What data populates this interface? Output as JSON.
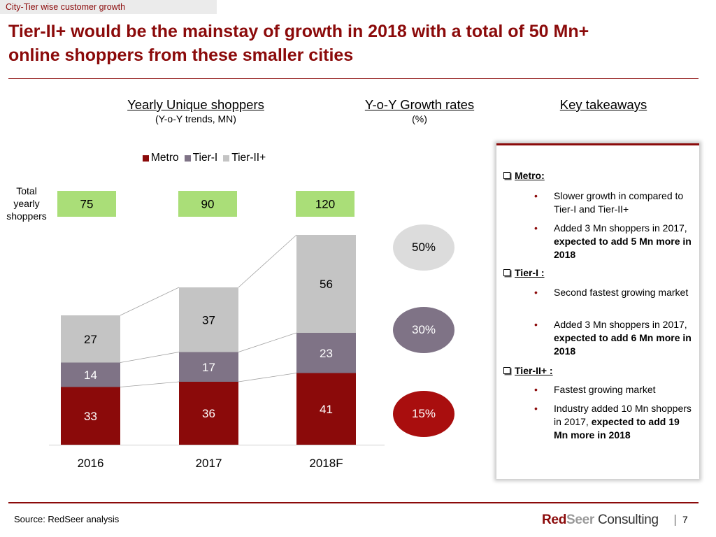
{
  "header": {
    "section_tag": "City-Tier wise customer growth",
    "title_line1": "Tier-II+ would be the mainstay of growth in 2018 with a total of 50 Mn+",
    "title_line2": "online shoppers from these smaller cities"
  },
  "columns": {
    "shoppers_heading": "Yearly Unique shoppers",
    "shoppers_sub": "(Y-o-Y trends, MN)",
    "growth_heading": "Y-o-Y Growth rates",
    "growth_sub": "(%)",
    "takeaways_heading": "Key takeaways"
  },
  "colors": {
    "brand": "#8b0a0a",
    "metro": "#8b0a0a",
    "tier1": "#7f7386",
    "tier2": "#c4c4c4",
    "total_box": "#aade78",
    "bubble_light": "#dcdcdc",
    "bubble_mid": "#7f7386",
    "bubble_dark": "#a90e0e"
  },
  "totals": {
    "label_line1": "Total",
    "label_line2": "yearly",
    "label_line3": "shoppers",
    "values": [
      "75",
      "90",
      "120"
    ]
  },
  "chart_data": {
    "type": "bar",
    "stacked": true,
    "categories": [
      "2016",
      "2017",
      "2018F"
    ],
    "series": [
      {
        "name": "Metro",
        "values": [
          33,
          36,
          41
        ],
        "color": "#8b0a0a"
      },
      {
        "name": "Tier-I",
        "values": [
          14,
          17,
          23
        ],
        "color": "#7f7386"
      },
      {
        "name": "Tier-II+",
        "values": [
          27,
          37,
          56
        ],
        "color": "#c4c4c4"
      }
    ],
    "totals": [
      75,
      90,
      120
    ],
    "legend_position": "top",
    "grid": false,
    "connector_lines": true
  },
  "growth_rates": [
    {
      "label": "50%",
      "tier": "Tier-II+"
    },
    {
      "label": "30%",
      "tier": "Tier-I"
    },
    {
      "label": "15%",
      "tier": "Metro"
    }
  ],
  "takeaways": {
    "metro": {
      "heading": "Metro:",
      "b1": "Slower growth in compared to Tier-I and Tier-II+",
      "b2_plain": "Added 3 Mn shoppers in 2017, ",
      "b2_bold": "expected to add 5 Mn more in 2018"
    },
    "tier1": {
      "heading": "Tier-I :",
      "b1": "Second fastest growing market",
      "b2_plain": "Added 3 Mn shoppers in 2017, ",
      "b2_bold": "expected to add 6 Mn more in 2018"
    },
    "tier2": {
      "heading": "Tier-II+ :",
      "b1": "Fastest growing market",
      "b2_plain": " Industry added 10 Mn shoppers in 2017, ",
      "b2_bold": "expected to add 19 Mn more in 2018"
    }
  },
  "footer": {
    "source": "Source: RedSeer analysis",
    "logo_red": "Red",
    "logo_seer": "Seer",
    "logo_consulting": " Consulting",
    "page_number": "7"
  }
}
